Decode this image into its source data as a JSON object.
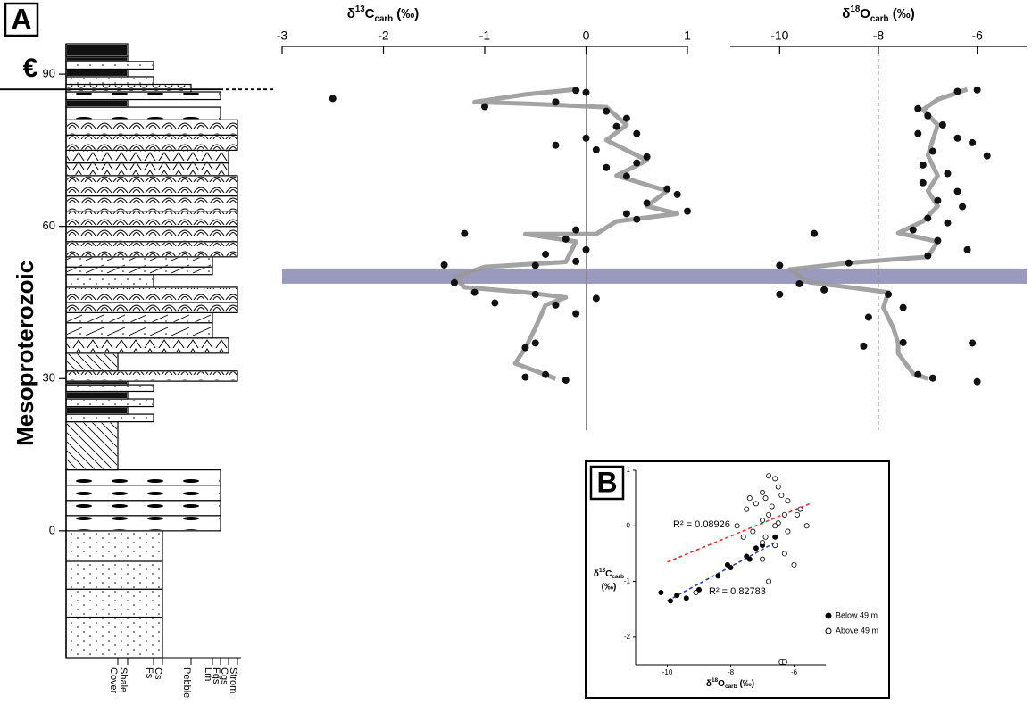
{
  "chart_data": [
    {
      "type": "column",
      "panel": "A",
      "ylabel": "Mesoproterozoic",
      "era_label": "€",
      "era_boundary": 87,
      "ylim": [
        -25,
        96
      ],
      "yticks": [
        0,
        30,
        60,
        90
      ],
      "categories": [
        "Cover",
        "Shale",
        "Fs",
        "Cs",
        "Pebble",
        "Lm",
        "Fgs",
        "Cgs",
        "Strom"
      ],
      "units": [
        {
          "bottom": -25,
          "top": -17,
          "lithology": "Cs"
        },
        {
          "bottom": -17,
          "top": -11.5,
          "lithology": "Cs"
        },
        {
          "bottom": -11.5,
          "top": -6,
          "lithology": "Cs"
        },
        {
          "bottom": -6,
          "top": 0,
          "lithology": "Cs"
        },
        {
          "bottom": 0,
          "top": 3,
          "lithology": "Fgs"
        },
        {
          "bottom": 3,
          "top": 6,
          "lithology": "Fgs"
        },
        {
          "bottom": 6,
          "top": 9,
          "lithology": "Fgs"
        },
        {
          "bottom": 9,
          "top": 12,
          "lithology": "Fgs"
        },
        {
          "bottom": 12,
          "top": 21.5,
          "lithology": "Cover"
        },
        {
          "bottom": 21.5,
          "top": 23,
          "lithology": "Fs"
        },
        {
          "bottom": 23,
          "top": 24.5,
          "lithology": "Shale"
        },
        {
          "bottom": 24.5,
          "top": 26,
          "lithology": "Fs"
        },
        {
          "bottom": 26,
          "top": 27.5,
          "lithology": "Shale"
        },
        {
          "bottom": 27.5,
          "top": 28.8,
          "lithology": "Fs"
        },
        {
          "bottom": 28.8,
          "top": 29.5,
          "lithology": "Shale"
        },
        {
          "bottom": 29.5,
          "top": 31.5,
          "lithology": "Strom"
        },
        {
          "bottom": 31.5,
          "top": 35,
          "lithology": "Cover"
        },
        {
          "bottom": 35,
          "top": 38,
          "lithology": "Cgs"
        },
        {
          "bottom": 38,
          "top": 41,
          "lithology": "Lm"
        },
        {
          "bottom": 41,
          "top": 43,
          "lithology": "Lm"
        },
        {
          "bottom": 43,
          "top": 45,
          "lithology": "Strom"
        },
        {
          "bottom": 45,
          "top": 48,
          "lithology": "Strom"
        },
        {
          "bottom": 48,
          "top": 50.5,
          "lithology": "Fs"
        },
        {
          "bottom": 50.5,
          "top": 52,
          "lithology": "Lm"
        },
        {
          "bottom": 52,
          "top": 54,
          "lithology": "Lm"
        },
        {
          "bottom": 54,
          "top": 57,
          "lithology": "Strom"
        },
        {
          "bottom": 57,
          "top": 60,
          "lithology": "Strom"
        },
        {
          "bottom": 60,
          "top": 63,
          "lithology": "Strom"
        },
        {
          "bottom": 63,
          "top": 66,
          "lithology": "Strom"
        },
        {
          "bottom": 66,
          "top": 70,
          "lithology": "Strom"
        },
        {
          "bottom": 70,
          "top": 72.5,
          "lithology": "Cgs"
        },
        {
          "bottom": 72.5,
          "top": 75,
          "lithology": "Cgs"
        },
        {
          "bottom": 75,
          "top": 78,
          "lithology": "Strom"
        },
        {
          "bottom": 78,
          "top": 81,
          "lithology": "Strom"
        },
        {
          "bottom": 81,
          "top": 83.5,
          "lithology": "Fgs"
        },
        {
          "bottom": 83.5,
          "top": 85,
          "lithology": "Shale"
        },
        {
          "bottom": 85,
          "top": 86.5,
          "lithology": "Fgs"
        },
        {
          "bottom": 86.5,
          "top": 88,
          "lithology": "Pebble"
        },
        {
          "bottom": 88,
          "top": 89.5,
          "lithology": "Fs"
        },
        {
          "bottom": 89.5,
          "top": 91,
          "lithology": "Shale"
        },
        {
          "bottom": 91,
          "top": 92.5,
          "lithology": "Fs"
        },
        {
          "bottom": 92.5,
          "top": 93.5,
          "lithology": "Shale"
        },
        {
          "bottom": 93.5,
          "top": 96,
          "lithology": "Shale"
        }
      ]
    },
    {
      "type": "profile",
      "title": {
        "pre": "δ",
        "sup": "13",
        "base": "C",
        "sub": "carb",
        "post": " (‰)"
      },
      "xlim": [
        -3,
        1
      ],
      "xticks": [
        -3,
        -2,
        -1,
        0,
        1
      ],
      "reference_x": 0,
      "reference_dash": false,
      "highlight": [
        48.7,
        51.7
      ],
      "highlight_color": "#9a9abf",
      "color": "#111",
      "curve_color": "#999",
      "x": [
        -2.5,
        -1.0,
        -0.1,
        0,
        -0.3,
        0.2,
        0.4,
        0.3,
        0.5,
        0,
        -0.3,
        0.1,
        0.6,
        0.5,
        0.2,
        0.4,
        0.8,
        0.9,
        0.6,
        1.0,
        0.4,
        0.5,
        -0.1,
        -1.2,
        -0.2,
        0,
        -0.4,
        -0.1,
        -0.5,
        -1.4,
        -1.3,
        -1.1,
        -0.5,
        -0.9,
        0.1,
        -0.3,
        -0.1,
        -0.5,
        -0.6,
        -0.4,
        -0.6,
        -0.2
      ],
      "depth": [
        85.2,
        83.6,
        86.8,
        86.4,
        84.5,
        82.7,
        81.3,
        79.7,
        78.3,
        77.4,
        76,
        75.1,
        73.7,
        72.5,
        71.6,
        69.9,
        67.4,
        66.3,
        64.6,
        63,
        62.5,
        61.4,
        59.3,
        58.6,
        57.5,
        55.4,
        54.5,
        53.1,
        52.3,
        52.4,
        48.9,
        47,
        46.6,
        44.9,
        45.8,
        44.5,
        42.8,
        37,
        36.1,
        30.8,
        30.3,
        29.7
      ],
      "curve": {
        "x": [
          -0.1,
          -0.6,
          -1.1,
          -0.6,
          0.2,
          0.4,
          0.2,
          0.6,
          0.3,
          0.8,
          0.6,
          0.9,
          0.3,
          0.1,
          -0.6,
          -0.1,
          -0.2,
          -1.0,
          -1.3,
          -1.2,
          -0.6,
          -0.2,
          -0.4,
          -0.5,
          -0.6,
          -0.7,
          -0.3
        ],
        "depth": [
          87,
          86,
          84.5,
          84.2,
          83.5,
          80,
          77,
          73,
          70,
          67,
          64,
          62.5,
          61,
          58.5,
          58.5,
          57,
          53,
          52,
          50,
          48,
          47,
          46,
          44.5,
          40,
          36,
          33,
          30
        ]
      }
    },
    {
      "type": "profile",
      "title": {
        "pre": "δ",
        "sup": "18",
        "base": "O",
        "sub": "carb",
        "post": " (‰)"
      },
      "xlim": [
        -11,
        -5
      ],
      "xticks": [
        -10,
        -8,
        -6
      ],
      "reference_x": -8,
      "reference_dash": true,
      "color": "#111",
      "curve_color": "#999",
      "x": [
        -7.2,
        -6.4,
        -6.0,
        -7.0,
        -6.7,
        -7.2,
        -6.4,
        -6.1,
        -6.9,
        -5.8,
        -7.1,
        -6.6,
        -7.1,
        -6.4,
        -6.8,
        -6.3,
        -7.0,
        -6.6,
        -7.3,
        -9.3,
        -6.8,
        -6.2,
        -7.0,
        -8.6,
        -10.0,
        -9.6,
        -10.0,
        -9.1,
        -7.8,
        -7.5,
        -8.2,
        -7.5,
        -6.1,
        -8.3,
        -7.2,
        -6.9,
        -6.0
      ],
      "depth": [
        83.2,
        86.6,
        86.9,
        81.8,
        80,
        78.3,
        77.4,
        76.5,
        74.8,
        73.9,
        72.1,
        70.4,
        68.6,
        66.9,
        65.1,
        63.9,
        61.6,
        60.7,
        59.3,
        58.6,
        57.2,
        55.4,
        54.2,
        52.8,
        52.3,
        48.7,
        46.6,
        47.5,
        46.6,
        44,
        42.1,
        37.1,
        37,
        36.4,
        30.8,
        30.1,
        29.4
      ],
      "curve": {
        "x": [
          -6.2,
          -6.8,
          -7.1,
          -6.8,
          -6.9,
          -7.0,
          -6.8,
          -7.0,
          -6.8,
          -7.1,
          -7.6,
          -6.8,
          -7.0,
          -8.6,
          -9.8,
          -9.4,
          -8.6,
          -7.8,
          -7.9,
          -7.7,
          -7.6,
          -7.6,
          -7.3,
          -7.0
        ],
        "depth": [
          87,
          85,
          83,
          80,
          77,
          74,
          70,
          67,
          64,
          61,
          58.7,
          57,
          54,
          52.8,
          51.5,
          49,
          48,
          47,
          44,
          40,
          37,
          35,
          31,
          30
        ]
      }
    },
    {
      "type": "scatter",
      "panel": "B",
      "xlabel": {
        "pre": "δ",
        "sup": "18",
        "base": "O",
        "sub": "carb",
        "post": " (‰)"
      },
      "ylabel": {
        "pre": "δ",
        "sup": "13",
        "base": "C",
        "sub": "carb",
        "post": "(‰)"
      },
      "xlim": [
        -11,
        -5
      ],
      "xticks": [
        -10,
        -8,
        -6
      ],
      "ylim": [
        -2.5,
        1
      ],
      "yticks": [
        -2,
        -1,
        0,
        1
      ],
      "series": [
        {
          "name": "Below 49 m",
          "color": "#000",
          "filled": true,
          "x": [
            -10.2,
            -9.9,
            -9.7,
            -9.4,
            -9.0,
            -8.4,
            -8.1,
            -7.5,
            -7.2,
            -7.0,
            -6.6,
            -7.4,
            -8.0
          ],
          "y": [
            -1.2,
            -1.35,
            -1.25,
            -1.3,
            -1.15,
            -0.9,
            -0.7,
            -0.55,
            -0.4,
            -0.35,
            -0.2,
            -0.6,
            -0.75
          ]
        },
        {
          "name": "Above 49 m",
          "color": "#000",
          "filled": false,
          "x": [
            -6.8,
            -6.6,
            -6.5,
            -7.0,
            -6.9,
            -6.4,
            -7.2,
            -6.7,
            -6.2,
            -5.9,
            -7.5,
            -6.8,
            -7.0,
            -6.5,
            -7.3,
            -6.9,
            -7.6,
            -7.0,
            -6.6,
            -6.2,
            -5.8,
            -7.8,
            -6.3,
            -7.0,
            -6.0,
            -6.8,
            -5.6,
            -7.4,
            -6.3,
            -6.6,
            -9.1,
            -6.4,
            -6.3
          ],
          "y": [
            0.9,
            0.85,
            0.7,
            0.6,
            0.5,
            0.55,
            0.4,
            0.35,
            0.45,
            0.2,
            0.3,
            0.2,
            0.1,
            0.05,
            -0.1,
            -0.2,
            -0.2,
            -0.3,
            -0.35,
            -0.1,
            0.3,
            0,
            -0.5,
            -0.6,
            -0.7,
            -1.0,
            0,
            0.5,
            0.2,
            0,
            -1.2,
            -2.45,
            -2.45
          ]
        }
      ],
      "trendlines": [
        {
          "color": "#e03030",
          "x": [
            -10,
            -5.5
          ],
          "y": [
            -0.65,
            0.4
          ],
          "label": "R² = 0.08926"
        },
        {
          "color": "#3040c0",
          "x": [
            -10,
            -6.6
          ],
          "y": [
            -1.35,
            -0.3
          ],
          "label": "R² = 0.82783"
        }
      ]
    }
  ]
}
